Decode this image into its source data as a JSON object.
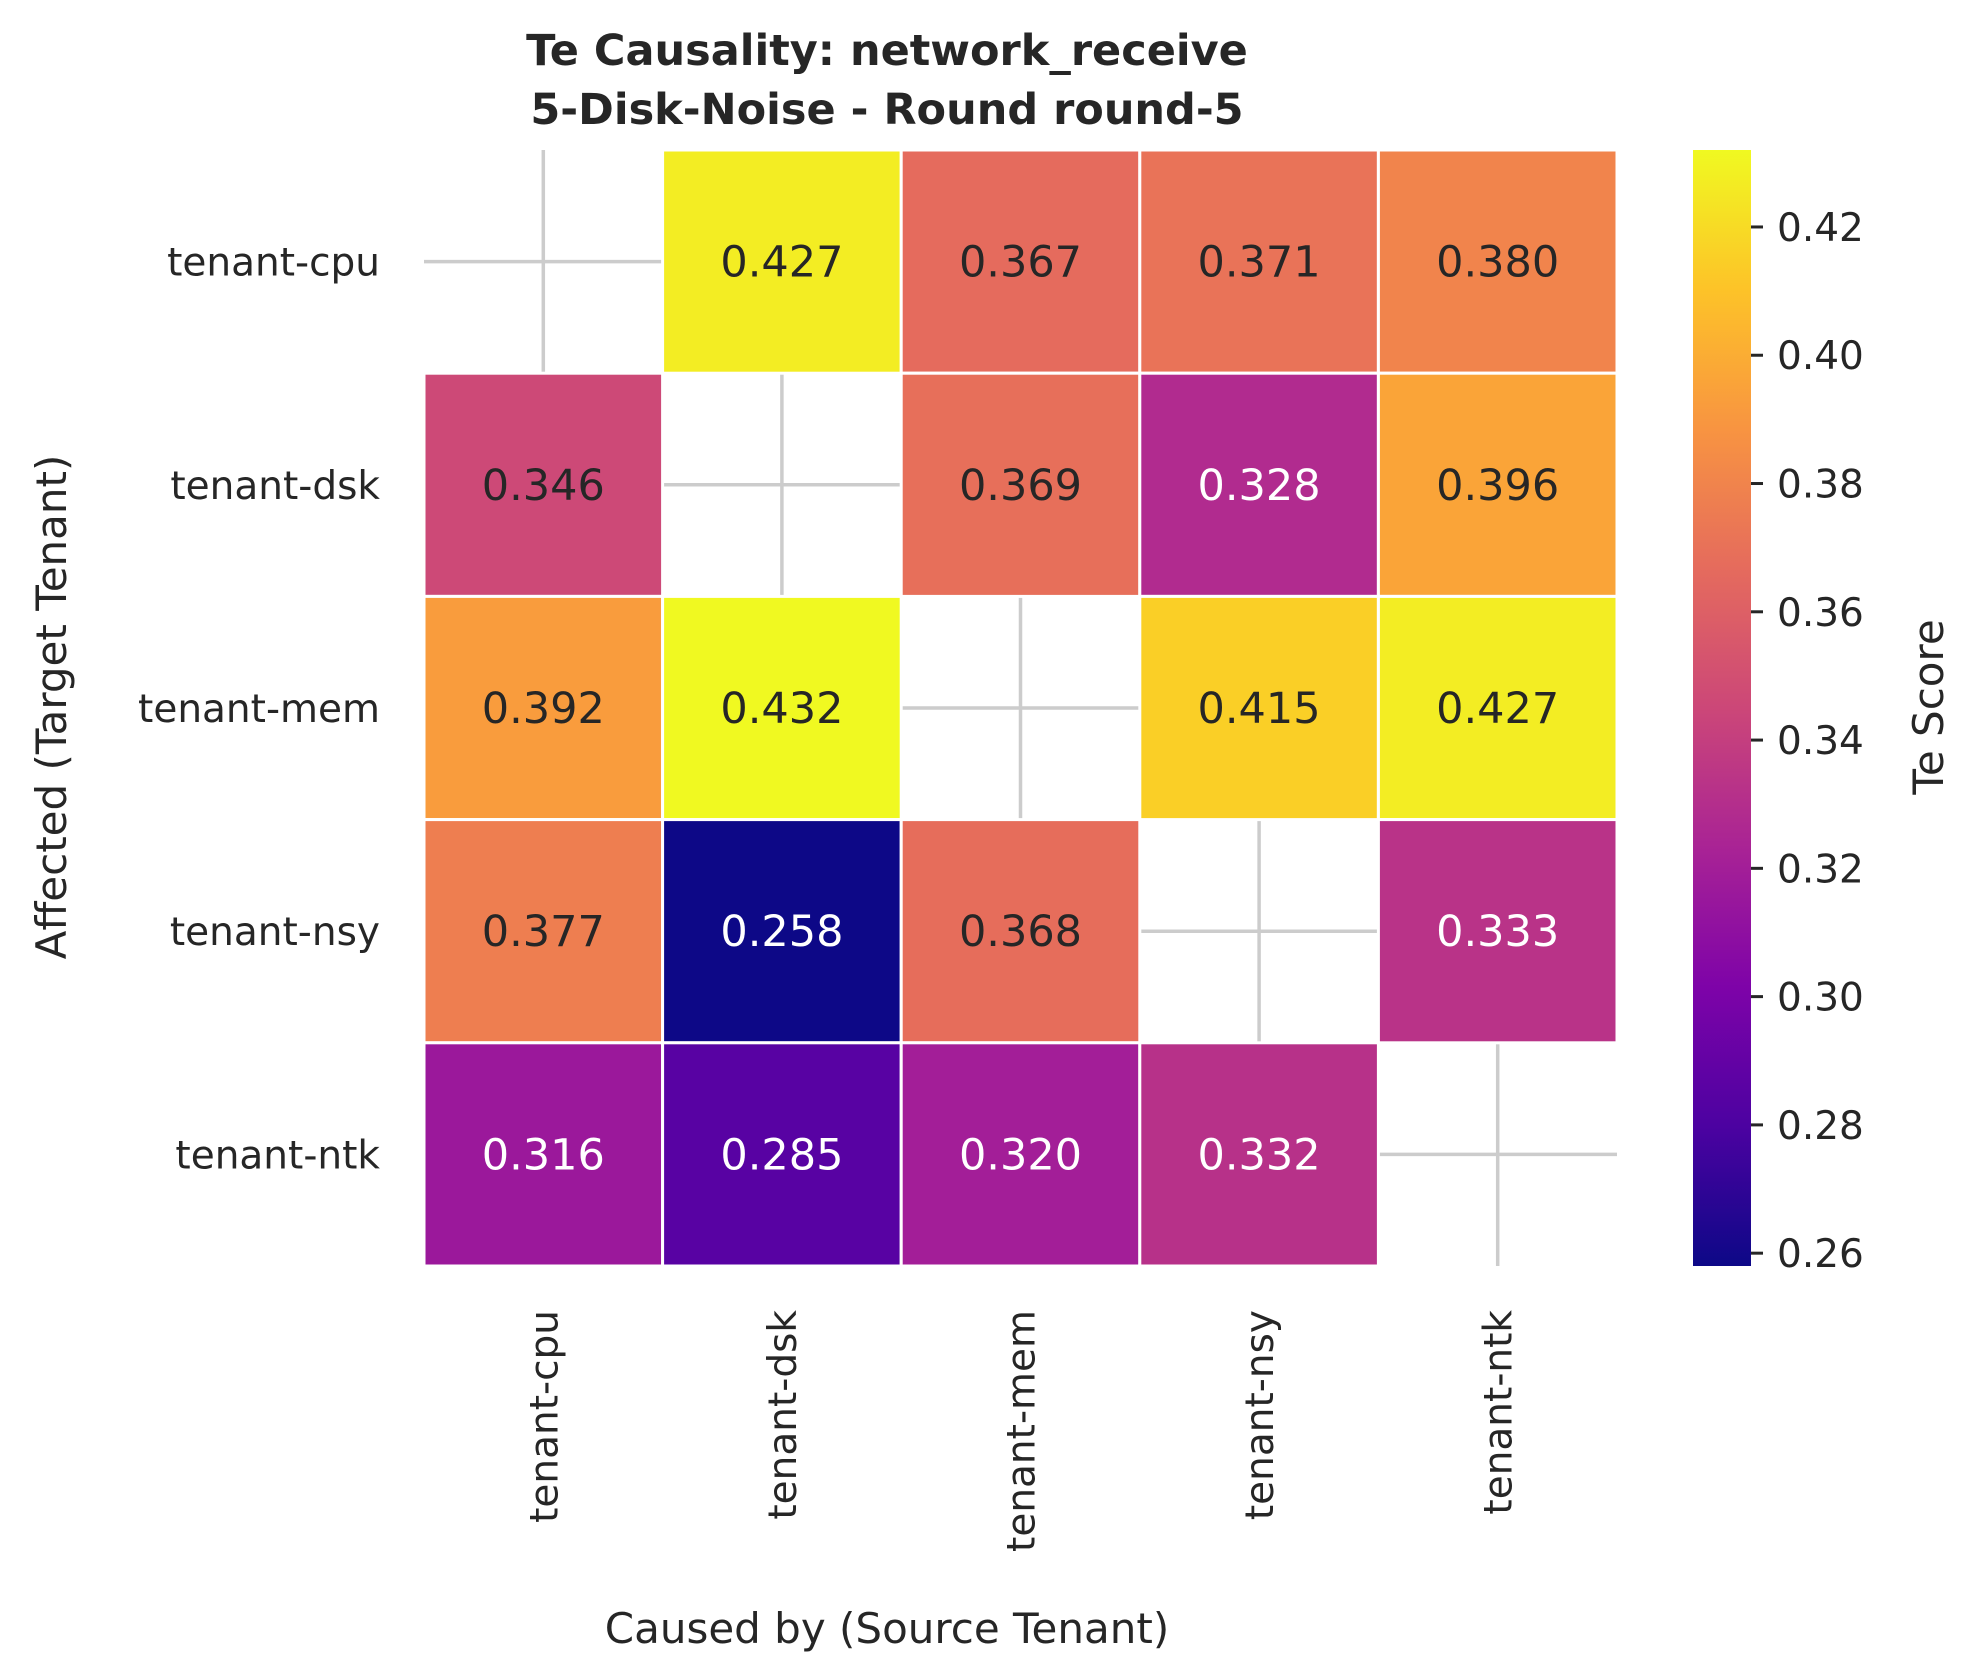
{
  "chart_data": {
    "type": "heatmap",
    "title_line1": "Te Causality: network_receive",
    "title_line2": "5-Disk-Noise - Round round-5",
    "xlabel": "Caused by (Source Tenant)",
    "ylabel": "Affected (Target Tenant)",
    "x_categories": [
      "tenant-cpu",
      "tenant-dsk",
      "tenant-mem",
      "tenant-nsy",
      "tenant-ntk"
    ],
    "y_categories": [
      "tenant-cpu",
      "tenant-dsk",
      "tenant-mem",
      "tenant-nsy",
      "tenant-ntk"
    ],
    "values": [
      [
        null,
        0.427,
        0.367,
        0.371,
        0.38
      ],
      [
        0.346,
        null,
        0.369,
        0.328,
        0.396
      ],
      [
        0.392,
        0.432,
        null,
        0.415,
        0.427
      ],
      [
        0.377,
        0.258,
        0.368,
        null,
        0.333
      ],
      [
        0.316,
        0.285,
        0.32,
        0.332,
        null
      ]
    ],
    "labels": [
      [
        "",
        "0.427",
        "0.367",
        "0.371",
        "0.380"
      ],
      [
        "0.346",
        "",
        "0.369",
        "0.328",
        "0.396"
      ],
      [
        "0.392",
        "0.432",
        "",
        "0.415",
        "0.427"
      ],
      [
        "0.377",
        "0.258",
        "0.368",
        "",
        "0.333"
      ],
      [
        "0.316",
        "0.285",
        "0.320",
        "0.332",
        ""
      ]
    ],
    "colormap": "plasma",
    "colorbar": {
      "label": "Te Score",
      "vmin": 0.258,
      "vmax": 0.432,
      "ticks": [
        0.26,
        0.28,
        0.3,
        0.32,
        0.34,
        0.36,
        0.38,
        0.4,
        0.42
      ],
      "tick_labels": [
        "0.26",
        "0.28",
        "0.30",
        "0.32",
        "0.34",
        "0.36",
        "0.38",
        "0.40",
        "0.42"
      ]
    },
    "grid": true
  }
}
